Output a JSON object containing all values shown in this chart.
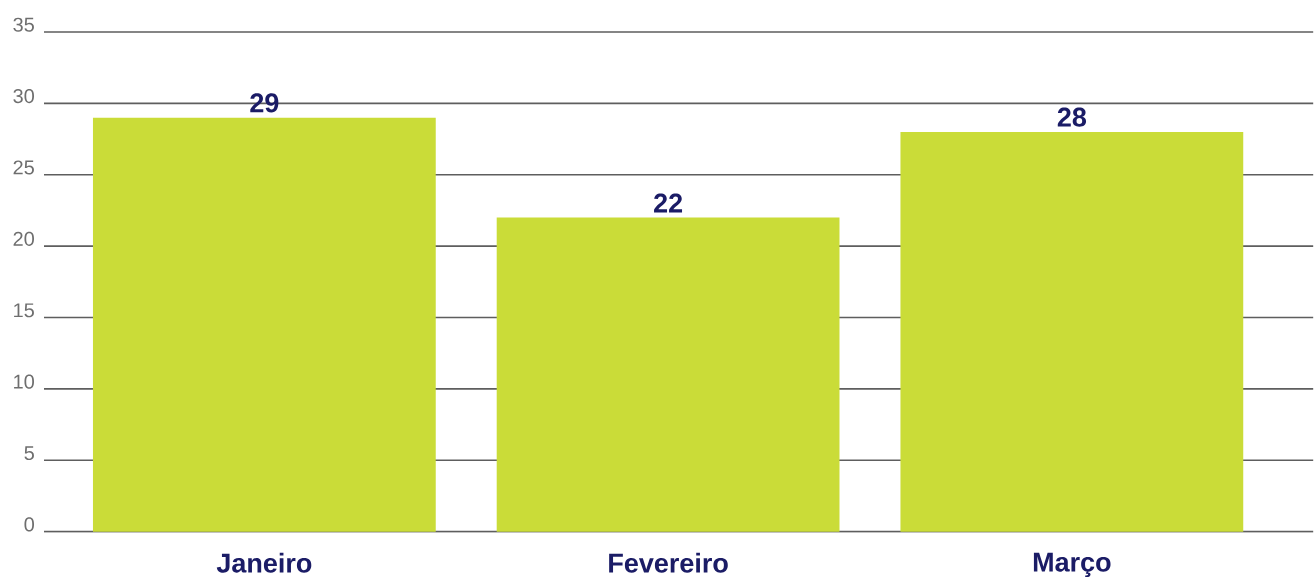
{
  "chart_data": {
    "type": "bar",
    "categories": [
      "Janeiro",
      "Fevereiro",
      "Março"
    ],
    "values": [
      29,
      22,
      28
    ],
    "color": "#cadc38",
    "ylim": [
      0,
      35
    ],
    "yticks": [
      0,
      5,
      10,
      15,
      20,
      25,
      30,
      35
    ],
    "grid": "y",
    "data_labels": true
  }
}
